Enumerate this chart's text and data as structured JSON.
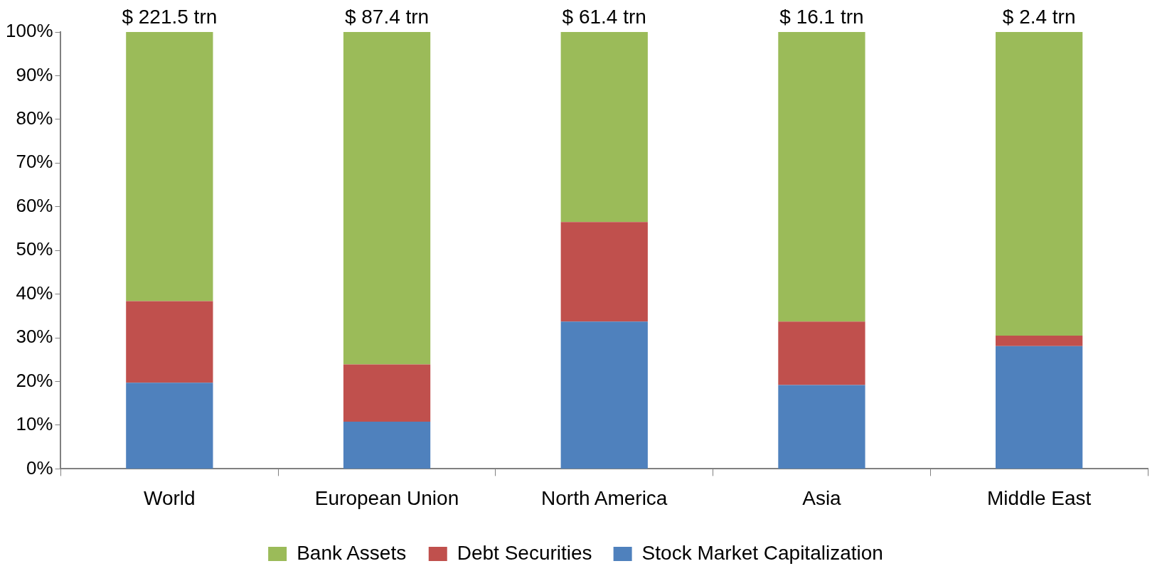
{
  "chart_data": {
    "type": "bar",
    "stacked": true,
    "categories": [
      "World",
      "European Union",
      "North America",
      "Asia",
      "Middle East"
    ],
    "series": [
      {
        "name": "Stock Market Capitalization",
        "color": "#4f81bd",
        "values": [
          19.7,
          10.8,
          33.7,
          19.2,
          28.1
        ]
      },
      {
        "name": "Debt Securities",
        "color": "#c0504d",
        "values": [
          18.7,
          13.1,
          22.8,
          14.5,
          2.4
        ]
      },
      {
        "name": "Bank Assets",
        "color": "#9bbb59",
        "values": [
          61.6,
          76.1,
          43.5,
          66.3,
          69.5
        ]
      }
    ],
    "ylim": [
      0,
      100
    ],
    "yticks": [
      {
        "value": 0,
        "label": "0%"
      },
      {
        "value": 10,
        "label": "10%"
      },
      {
        "value": 20,
        "label": "20%"
      },
      {
        "value": 30,
        "label": "30%"
      },
      {
        "value": 40,
        "label": "40%"
      },
      {
        "value": 50,
        "label": "50%"
      },
      {
        "value": 60,
        "label": "60%"
      },
      {
        "value": 70,
        "label": "70%"
      },
      {
        "value": 80,
        "label": "80%"
      },
      {
        "value": 90,
        "label": "90%"
      },
      {
        "value": 100,
        "label": "100%"
      }
    ],
    "annotations": [
      {
        "text": "$ 221.5 trn",
        "x": "World",
        "y": 100
      },
      {
        "text": "$ 87.4 trn",
        "x": "European Union",
        "y": 100
      },
      {
        "text": "$ 61.4 trn",
        "x": "North America",
        "y": 100
      },
      {
        "text": "$ 16.1 trn",
        "x": "Asia",
        "y": 100
      },
      {
        "text": "$ 2.4 trn",
        "x": "Middle East",
        "y": 100
      }
    ],
    "legend": "bottom",
    "grid": false
  }
}
